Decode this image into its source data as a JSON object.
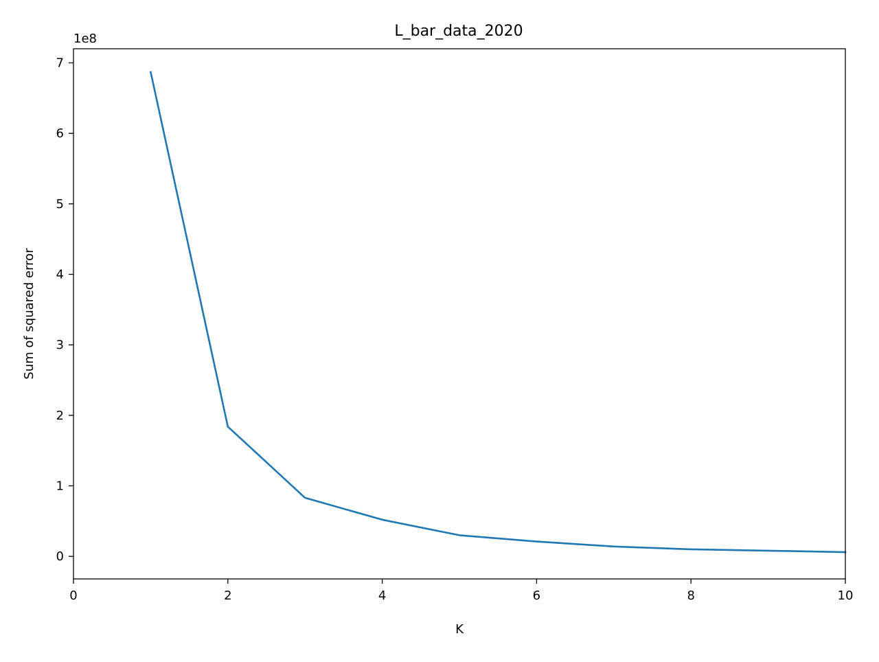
{
  "chart_data": {
    "type": "line",
    "title": "L_bar_data_2020",
    "xlabel": "K",
    "ylabel": "Sum of squared error",
    "y_offset_label": "1e8",
    "xlim": [
      0,
      10
    ],
    "ylim": [
      -0.32,
      7.2
    ],
    "y_scale_factor": 100000000,
    "x_ticks": [
      0,
      2,
      4,
      6,
      8,
      10
    ],
    "y_ticks": [
      0,
      1,
      2,
      3,
      4,
      5,
      6,
      7
    ],
    "grid": false,
    "series": [
      {
        "color": "#1f77b4",
        "x": [
          1,
          2,
          3,
          4,
          5,
          6,
          7,
          8,
          9,
          10
        ],
        "y": [
          6.87,
          1.84,
          0.83,
          0.52,
          0.3,
          0.21,
          0.14,
          0.1,
          0.08,
          0.06
        ]
      }
    ]
  }
}
